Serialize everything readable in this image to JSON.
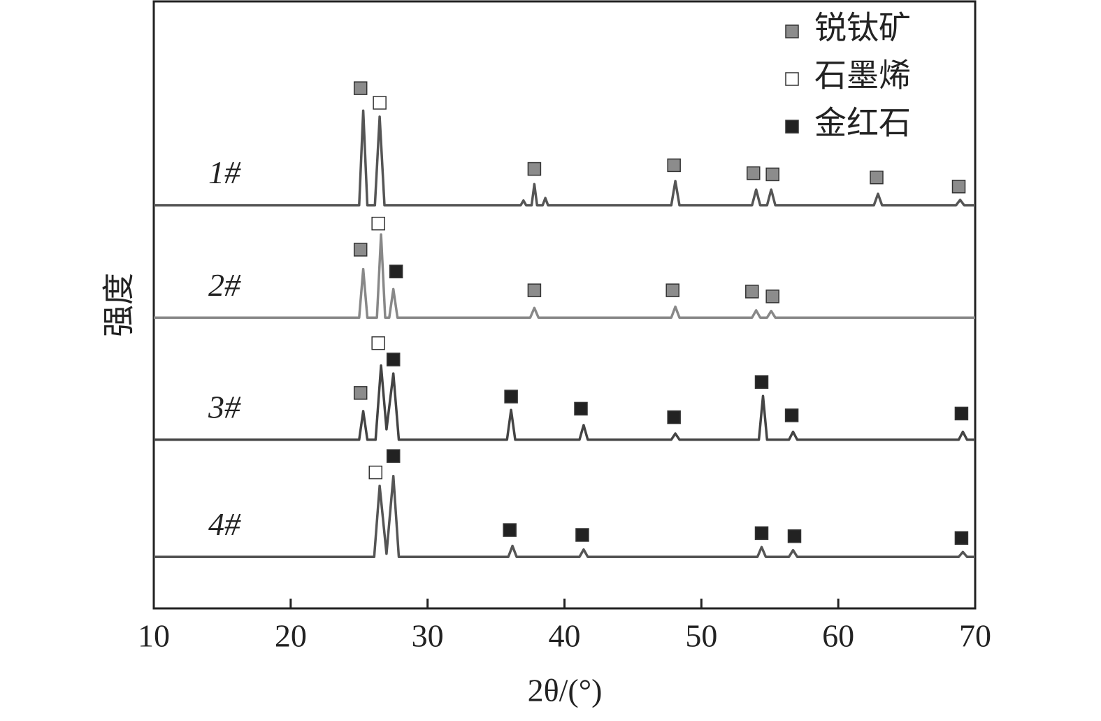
{
  "chart_data": {
    "type": "line",
    "x_label": "2θ/(°)",
    "y_label": "强度",
    "xlim": [
      10,
      70
    ],
    "xticks": [
      10,
      20,
      30,
      40,
      50,
      60,
      70
    ],
    "ylim": [
      0,
      100
    ],
    "legend": "upper right",
    "series": [
      {
        "name": "1#",
        "color": "#555555",
        "x": [
          10,
          25.0,
          25.3,
          25.6,
          26.15,
          26.5,
          26.85,
          36.8,
          37.0,
          37.2,
          37.6,
          37.8,
          38.0,
          38.4,
          38.6,
          38.8,
          47.8,
          48.1,
          48.4,
          53.7,
          54.0,
          54.3,
          54.8,
          55.1,
          55.4,
          62.6,
          62.9,
          63.2,
          68.6,
          68.9,
          69.2,
          70
        ],
        "values": [
          66.4,
          66.4,
          82.0,
          66.4,
          66.4,
          81.0,
          66.4,
          66.4,
          67.2,
          66.4,
          66.4,
          69.9,
          66.4,
          66.4,
          67.6,
          66.4,
          66.4,
          70.4,
          66.4,
          66.4,
          69.0,
          66.4,
          66.4,
          69.0,
          66.4,
          66.4,
          68.3,
          66.4,
          66.4,
          67.3,
          66.4,
          66.4
        ]
      },
      {
        "name": "2#",
        "color": "#888888",
        "x": [
          10,
          25.0,
          25.3,
          25.6,
          26.3,
          26.6,
          26.9,
          27.2,
          27.5,
          27.8,
          37.5,
          37.8,
          38.1,
          47.8,
          48.1,
          48.4,
          53.7,
          54.0,
          54.3,
          54.8,
          55.1,
          55.4,
          70
        ],
        "values": [
          47.9,
          47.9,
          55.9,
          47.9,
          47.9,
          61.6,
          47.9,
          47.9,
          52.6,
          47.9,
          47.9,
          49.5,
          47.9,
          47.9,
          49.7,
          47.9,
          47.9,
          49.1,
          47.9,
          47.9,
          49.0,
          47.9,
          47.9
        ]
      },
      {
        "name": "3#",
        "color": "#444444",
        "x": [
          10,
          25.0,
          25.3,
          25.6,
          26.2,
          26.6,
          27.0,
          27.5,
          27.9,
          35.8,
          36.1,
          36.4,
          41.1,
          41.4,
          41.7,
          47.8,
          48.1,
          48.4,
          54.2,
          54.5,
          54.8,
          56.4,
          56.7,
          57.0,
          68.8,
          69.1,
          69.4,
          70
        ],
        "values": [
          27.8,
          27.8,
          32.5,
          27.8,
          27.8,
          40.0,
          29.5,
          38.7,
          27.8,
          27.8,
          32.7,
          27.8,
          27.8,
          30.2,
          27.8,
          27.8,
          28.8,
          27.8,
          27.8,
          35.0,
          27.8,
          27.8,
          29.1,
          27.8,
          27.8,
          29.1,
          27.8,
          27.8
        ]
      },
      {
        "name": "4#",
        "color": "#555555",
        "x": [
          10,
          26.1,
          26.5,
          27.0,
          27.5,
          27.9,
          35.9,
          36.2,
          36.5,
          41.1,
          41.4,
          41.7,
          54.1,
          54.4,
          54.7,
          56.4,
          56.7,
          57.0,
          68.8,
          69.1,
          69.4,
          70
        ],
        "values": [
          8.5,
          8.5,
          20.2,
          9.0,
          21.8,
          8.5,
          8.5,
          10.3,
          8.5,
          8.5,
          9.7,
          8.5,
          8.5,
          10.1,
          8.5,
          8.5,
          9.6,
          8.5,
          8.5,
          9.3,
          8.5,
          8.5
        ]
      }
    ],
    "phases": [
      {
        "name": "锐钛矿",
        "color": "#8c8c8c",
        "x": [
          25.1,
          37.8,
          48.0,
          53.8,
          55.2,
          62.8,
          68.8,
          25.1,
          37.8,
          47.9,
          53.7,
          55.2,
          25.1
        ],
        "y": [
          85.7,
          72.4,
          73.0,
          71.7,
          71.5,
          71.0,
          69.5,
          59.1,
          52.4,
          52.4,
          52.2,
          51.4,
          35.5
        ]
      },
      {
        "name": "石墨烯",
        "color": "#ffffff",
        "x": [
          26.5,
          26.4,
          26.4,
          26.2
        ],
        "y": [
          83.3,
          63.4,
          43.7,
          22.4
        ]
      },
      {
        "name": "金红石",
        "color": "#222222",
        "x": [
          27.7,
          27.5,
          36.1,
          41.2,
          48.0,
          54.4,
          56.6,
          69.0,
          27.5,
          36.0,
          41.3,
          54.4,
          56.8,
          69.0
        ],
        "y": [
          55.5,
          41.0,
          34.9,
          32.9,
          31.5,
          37.3,
          31.8,
          32.1,
          25.1,
          12.9,
          12.1,
          12.4,
          11.9,
          11.6
        ]
      }
    ]
  }
}
